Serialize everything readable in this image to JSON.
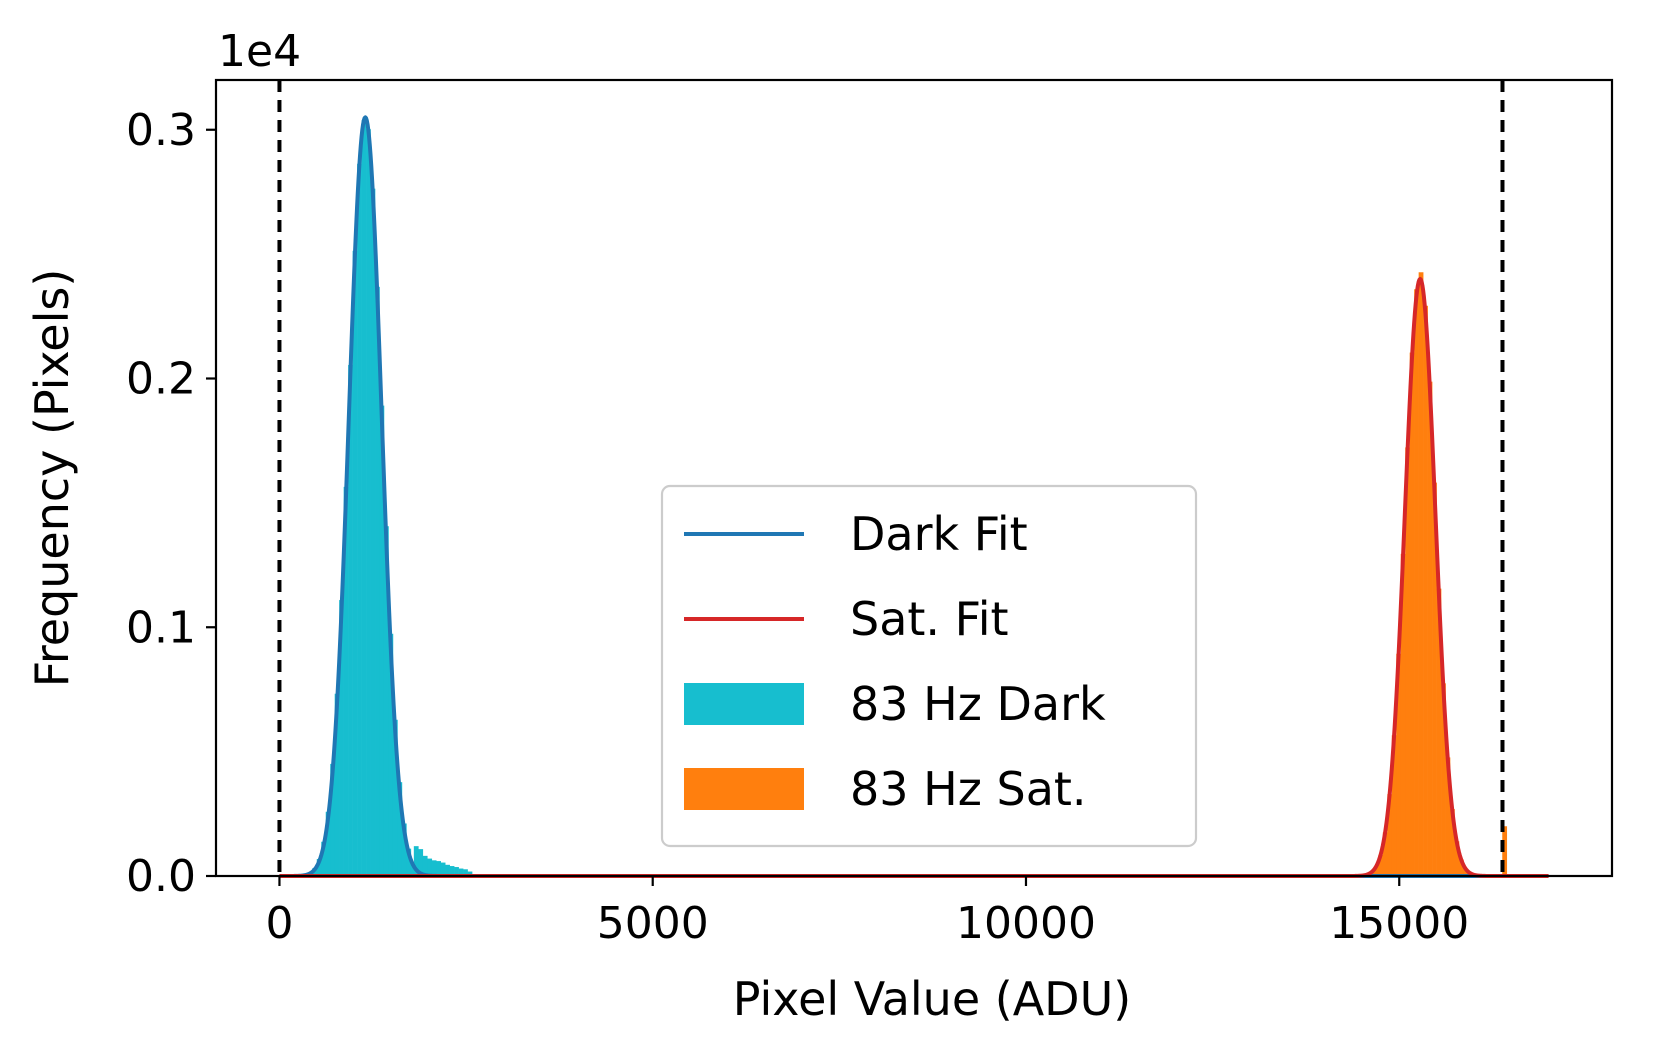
{
  "chart_data": {
    "type": "histogram",
    "xlabel": "Pixel Value (ADU)",
    "ylabel": "Frequency (Pixels)",
    "y_offset_text": "1e4",
    "xlim": [
      -850,
      17850
    ],
    "ylim": [
      0,
      0.32
    ],
    "x_ticks": [
      0,
      5000,
      10000,
      15000
    ],
    "x_tick_labels": [
      "0",
      "5000",
      "10000",
      "15000"
    ],
    "y_ticks": [
      0.0,
      0.1,
      0.2,
      0.3
    ],
    "y_tick_labels": [
      "0.0",
      "0.1",
      "0.2",
      "0.3"
    ],
    "grid": false,
    "legend_position": "lower-center",
    "vlines": [
      0,
      16383
    ],
    "bin_width": 60,
    "series": [
      {
        "name": "Dark Fit",
        "kind": "line",
        "model": "gaussian",
        "mean": 1150,
        "sigma": 220,
        "peak": 0.305,
        "x_range": [
          0,
          17000
        ],
        "color": "#1f77b4"
      },
      {
        "name": "Sat. Fit",
        "kind": "line",
        "model": "gaussian",
        "mean": 15280,
        "sigma": 205,
        "peak": 0.24,
        "x_range": [
          0,
          17000
        ],
        "color": "#d62728"
      },
      {
        "name": "83 Hz Dark",
        "kind": "bars",
        "range": [
          200,
          2600
        ],
        "mean": 1150,
        "sigma": 225,
        "peak": 0.305,
        "tail": [
          {
            "x": 1800,
            "value": 0.012
          },
          {
            "x": 1900,
            "value": 0.009
          },
          {
            "x": 2000,
            "value": 0.007
          },
          {
            "x": 2100,
            "value": 0.006
          },
          {
            "x": 2200,
            "value": 0.005
          },
          {
            "x": 2300,
            "value": 0.004
          },
          {
            "x": 2400,
            "value": 0.003
          },
          {
            "x": 2500,
            "value": 0.002
          }
        ],
        "color": "#17becf"
      },
      {
        "name": "83 Hz Sat.",
        "kind": "bars",
        "range": [
          14300,
          16500
        ],
        "mean": 15280,
        "sigma": 205,
        "peak": 0.243,
        "extras": [
          {
            "x": 16380,
            "value": 0.02
          }
        ],
        "color": "#ff7f0e"
      }
    ]
  }
}
